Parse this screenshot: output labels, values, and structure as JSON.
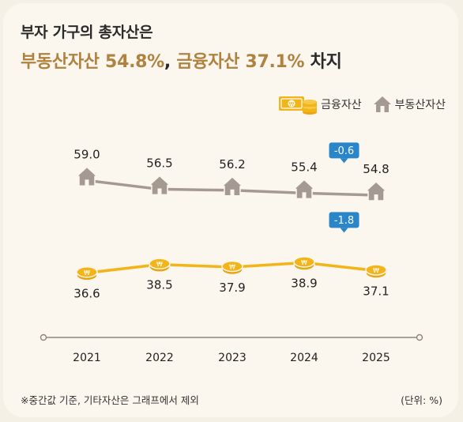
{
  "header": {
    "title_line1": "부자 가구의 총자산은",
    "title_line2_part1": "부동산자산 54.8%",
    "title_line2_sep": ", ",
    "title_line2_part2": "금융자산 37.1%",
    "title_line2_part3": " 차지"
  },
  "legend": {
    "financial_label": "금융자산",
    "real_estate_label": "부동산자산",
    "financial_icon": "coin-money-icon",
    "real_estate_icon": "house-icon"
  },
  "colors": {
    "real_estate": "#a49a91",
    "financial": "#f2b418",
    "badge": "#2a86c9",
    "title_accent": "#b0823f",
    "axis": "#8d8580"
  },
  "chart_data": {
    "type": "line",
    "categories": [
      "2021",
      "2022",
      "2023",
      "2024",
      "2025"
    ],
    "series": [
      {
        "name": "부동산자산",
        "values": [
          59.0,
          56.5,
          56.2,
          55.4,
          54.8
        ],
        "labels": [
          "59.0",
          "56.5",
          "56.2",
          "55.4",
          "54.8"
        ]
      },
      {
        "name": "금융자산",
        "values": [
          36.6,
          38.5,
          37.9,
          38.9,
          37.1
        ],
        "labels": [
          "36.6",
          "38.5",
          "37.9",
          "38.9",
          "37.1"
        ]
      }
    ],
    "annotations": [
      {
        "series": "부동산자산",
        "between": [
          "2024",
          "2025"
        ],
        "text": "-0.6"
      },
      {
        "series": "금융자산",
        "between": [
          "2024",
          "2025"
        ],
        "text": "-1.8"
      }
    ],
    "grid": false
  },
  "footer": {
    "note": "※중간값 기준, 기타자산은 그래프에서 제외",
    "unit": "(단위: %)"
  }
}
